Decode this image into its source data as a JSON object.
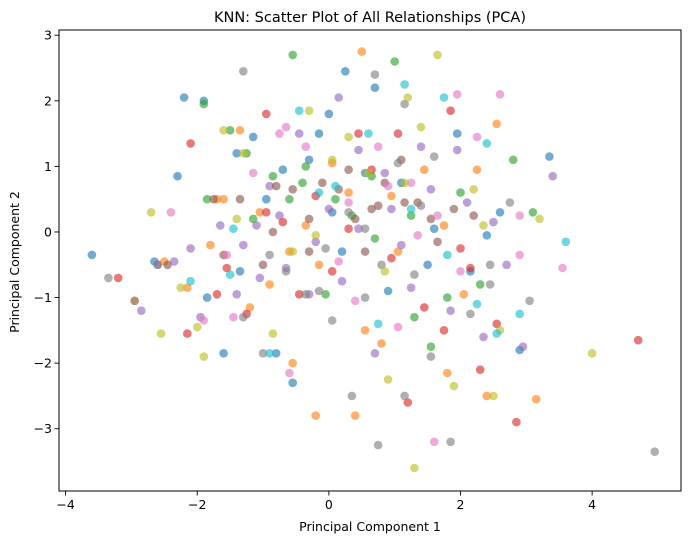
{
  "chart_data": {
    "type": "scatter",
    "title": "KNN: Scatter Plot of All Relationships (PCA)",
    "xlabel": "Principal Component 1",
    "ylabel": "Principal Component 2",
    "xlim": [
      -4.1,
      5.35
    ],
    "ylim": [
      -3.95,
      3.08
    ],
    "xticks": [
      -4,
      -2,
      0,
      2,
      4
    ],
    "yticks": [
      -3,
      -2,
      -1,
      0,
      1,
      2,
      3
    ],
    "grid": false,
    "legend": "none",
    "colors": [
      "#1f77b4",
      "#ff7f0e",
      "#2ca02c",
      "#d62728",
      "#9467bd",
      "#8c564b",
      "#e377c2",
      "#7f7f7f",
      "#bcbd22",
      "#17becf"
    ],
    "series": [
      {
        "color": "#1f77b4",
        "points": [
          [
            -3.6,
            -0.35
          ],
          [
            -2.2,
            2.05
          ],
          [
            -1.9,
            2.0
          ],
          [
            -2.3,
            0.85
          ],
          [
            -1.85,
            -1.0
          ],
          [
            -1.4,
            1.2
          ],
          [
            -1.15,
            1.45
          ],
          [
            -1.35,
            -0.6
          ],
          [
            -0.8,
            -1.85
          ],
          [
            -0.55,
            -2.3
          ],
          [
            -0.3,
            1.1
          ],
          [
            0.0,
            1.8
          ],
          [
            0.25,
            2.45
          ],
          [
            0.55,
            0.9
          ],
          [
            0.9,
            -0.9
          ],
          [
            1.5,
            -0.5
          ],
          [
            1.6,
            0.05
          ],
          [
            2.15,
            -0.6
          ],
          [
            2.4,
            -0.05
          ],
          [
            2.9,
            -1.8
          ],
          [
            3.35,
            1.15
          ],
          [
            -0.7,
            0.95
          ],
          [
            0.7,
            2.2
          ],
          [
            -1.6,
            -1.85
          ],
          [
            -2.65,
            -0.45
          ],
          [
            0.05,
            0.3
          ],
          [
            1.1,
            0.75
          ],
          [
            2.6,
            0.3
          ],
          [
            -0.95,
            0.5
          ],
          [
            0.2,
            -0.3
          ],
          [
            1.95,
            1.5
          ],
          [
            -0.15,
            1.5
          ]
        ]
      },
      {
        "color": "#ff7f0e",
        "points": [
          [
            -2.5,
            -0.45
          ],
          [
            -2.15,
            -0.85
          ],
          [
            -1.8,
            -0.2
          ],
          [
            -1.6,
            0.5
          ],
          [
            -1.35,
            1.55
          ],
          [
            -1.2,
            -1.15
          ],
          [
            -0.9,
            -0.8
          ],
          [
            -0.6,
            -0.3
          ],
          [
            -0.35,
            0.1
          ],
          [
            -0.15,
            -0.5
          ],
          [
            0.05,
            1.05
          ],
          [
            0.3,
            0.6
          ],
          [
            0.55,
            -1.5
          ],
          [
            0.8,
            -1.7
          ],
          [
            1.05,
            -0.3
          ],
          [
            1.45,
            0.95
          ],
          [
            1.75,
            0.1
          ],
          [
            2.05,
            -0.95
          ],
          [
            2.4,
            -2.5
          ],
          [
            2.55,
            1.65
          ],
          [
            3.15,
            -2.55
          ],
          [
            -0.55,
            -2.0
          ],
          [
            -0.2,
            -2.8
          ],
          [
            0.5,
            2.75
          ],
          [
            -1.05,
            0.3
          ],
          [
            0.95,
            0.55
          ],
          [
            1.8,
            -2.15
          ],
          [
            -2.95,
            -1.05
          ],
          [
            -1.7,
            0.5
          ],
          [
            0.4,
            -2.8
          ],
          [
            2.25,
            0.95
          ]
        ]
      },
      {
        "color": "#2ca02c",
        "points": [
          [
            -1.85,
            0.5
          ],
          [
            -1.5,
            1.55
          ],
          [
            -1.25,
            1.2
          ],
          [
            -0.85,
            0.85
          ],
          [
            -0.55,
            2.7
          ],
          [
            -0.35,
            1.0
          ],
          [
            -0.05,
            -0.95
          ],
          [
            0.1,
            0.5
          ],
          [
            0.35,
            0.25
          ],
          [
            0.7,
            -0.1
          ],
          [
            1.0,
            2.6
          ],
          [
            1.3,
            -1.3
          ],
          [
            1.55,
            -1.75
          ],
          [
            1.8,
            -1.0
          ],
          [
            2.0,
            0.6
          ],
          [
            2.3,
            -0.8
          ],
          [
            2.8,
            1.1
          ],
          [
            3.1,
            0.3
          ],
          [
            -1.9,
            1.95
          ],
          [
            -0.4,
            0.75
          ],
          [
            0.65,
            0.85
          ],
          [
            1.25,
            0.25
          ],
          [
            -0.6,
            0.5
          ],
          [
            -1.15,
            0.2
          ]
        ]
      },
      {
        "color": "#d62728",
        "points": [
          [
            -3.2,
            -0.7
          ],
          [
            -2.15,
            -1.55
          ],
          [
            -1.55,
            -0.55
          ],
          [
            -1.25,
            -1.25
          ],
          [
            -0.95,
            1.8
          ],
          [
            -0.7,
            0.15
          ],
          [
            -0.45,
            -0.95
          ],
          [
            -0.2,
            0.55
          ],
          [
            0.05,
            -0.6
          ],
          [
            0.45,
            1.5
          ],
          [
            0.65,
            0.95
          ],
          [
            0.95,
            -0.4
          ],
          [
            1.2,
            -2.6
          ],
          [
            1.45,
            -1.15
          ],
          [
            1.75,
            -1.5
          ],
          [
            2.0,
            -0.25
          ],
          [
            2.3,
            -2.1
          ],
          [
            2.55,
            -1.4
          ],
          [
            2.85,
            -2.9
          ],
          [
            4.7,
            -1.65
          ],
          [
            -2.1,
            1.35
          ],
          [
            1.05,
            1.5
          ],
          [
            0.3,
            0.05
          ],
          [
            -1.7,
            -0.95
          ],
          [
            1.85,
            1.85
          ],
          [
            -0.95,
            0.3
          ],
          [
            2.15,
            -0.55
          ]
        ]
      },
      {
        "color": "#9467bd",
        "points": [
          [
            -2.6,
            -0.5
          ],
          [
            -2.1,
            -0.25
          ],
          [
            -1.95,
            -1.3
          ],
          [
            -1.65,
            0.1
          ],
          [
            -1.3,
            -0.2
          ],
          [
            -1.05,
            -0.7
          ],
          [
            -0.75,
            0.25
          ],
          [
            -0.45,
            1.5
          ],
          [
            -0.2,
            -0.15
          ],
          [
            0.0,
            0.35
          ],
          [
            0.2,
            -0.75
          ],
          [
            0.45,
            1.25
          ],
          [
            0.7,
            -1.85
          ],
          [
            0.95,
            0.35
          ],
          [
            1.25,
            -0.85
          ],
          [
            1.55,
            0.65
          ],
          [
            1.85,
            -1.2
          ],
          [
            2.1,
            0.45
          ],
          [
            2.35,
            -1.6
          ],
          [
            2.7,
            -0.5
          ],
          [
            2.95,
            -1.75
          ],
          [
            3.4,
            0.85
          ],
          [
            -2.85,
            -1.2
          ],
          [
            -1.4,
            -0.95
          ],
          [
            0.45,
            0.05
          ],
          [
            1.4,
            1.3
          ],
          [
            -0.9,
            0.7
          ],
          [
            0.85,
            0.9
          ],
          [
            -0.3,
            -0.95
          ],
          [
            2.5,
            0.15
          ],
          [
            -1.1,
            0.1
          ],
          [
            0.15,
            2.05
          ],
          [
            1.1,
            -0.2
          ],
          [
            -2.35,
            -0.45
          ],
          [
            -0.65,
            -0.55
          ],
          [
            1.95,
            1.25
          ]
        ]
      },
      {
        "color": "#8c564b",
        "points": [
          [
            -2.45,
            -0.5
          ],
          [
            -1.75,
            0.5
          ],
          [
            -1.35,
            0.5
          ],
          [
            -1.0,
            -0.5
          ],
          [
            -0.8,
            0.7
          ],
          [
            -0.55,
            0.65
          ],
          [
            -0.3,
            -0.3
          ],
          [
            -0.1,
            0.75
          ],
          [
            0.15,
            0.65
          ],
          [
            0.4,
            0.2
          ],
          [
            0.65,
            0.35
          ],
          [
            0.85,
            0.75
          ],
          [
            1.1,
            1.1
          ],
          [
            1.35,
            0.45
          ],
          [
            1.65,
            -0.15
          ],
          [
            1.9,
            0.35
          ],
          [
            2.2,
            0.25
          ],
          [
            -0.3,
            0.2
          ],
          [
            0.3,
            0.95
          ],
          [
            0.75,
            0.4
          ],
          [
            1.55,
            0.2
          ],
          [
            -1.6,
            -0.35
          ],
          [
            0.55,
            -0.3
          ],
          [
            1.15,
            0.45
          ],
          [
            -0.85,
            0.0
          ]
        ]
      },
      {
        "color": "#e377c2",
        "points": [
          [
            -2.4,
            0.3
          ],
          [
            -1.9,
            -1.35
          ],
          [
            -1.55,
            -0.35
          ],
          [
            -1.15,
            0.9
          ],
          [
            -0.6,
            -2.15
          ],
          [
            -0.35,
            1.3
          ],
          [
            0.15,
            -0.45
          ],
          [
            0.4,
            -1.05
          ],
          [
            0.75,
            1.3
          ],
          [
            1.05,
            -1.45
          ],
          [
            1.35,
            -0.05
          ],
          [
            1.65,
            0.25
          ],
          [
            1.95,
            2.1
          ],
          [
            2.25,
            1.45
          ],
          [
            2.6,
            2.1
          ],
          [
            2.9,
            0.25
          ],
          [
            3.55,
            -0.55
          ],
          [
            1.6,
            -3.2
          ],
          [
            -0.65,
            1.6
          ],
          [
            2.0,
            -0.6
          ],
          [
            0.3,
            0.45
          ],
          [
            -1.45,
            -1.3
          ],
          [
            0.9,
            0.7
          ],
          [
            2.9,
            -0.35
          ],
          [
            -0.75,
            1.5
          ],
          [
            1.25,
            0.75
          ]
        ]
      },
      {
        "color": "#7f7f7f",
        "points": [
          [
            -3.35,
            -0.7
          ],
          [
            -2.95,
            -1.05
          ],
          [
            -2.6,
            -0.5
          ],
          [
            -1.3,
            -1.3
          ],
          [
            -1.0,
            -1.85
          ],
          [
            -0.65,
            -0.6
          ],
          [
            -0.35,
            -0.95
          ],
          [
            -0.05,
            -0.25
          ],
          [
            0.3,
            0.3
          ],
          [
            0.55,
            0.05
          ],
          [
            0.8,
            -0.5
          ],
          [
            1.05,
            1.05
          ],
          [
            1.3,
            -0.65
          ],
          [
            1.55,
            -1.9
          ],
          [
            1.85,
            -3.2
          ],
          [
            2.15,
            -1.25
          ],
          [
            2.45,
            -0.5
          ],
          [
            2.75,
            0.45
          ],
          [
            3.05,
            -1.05
          ],
          [
            4.95,
            -3.35
          ],
          [
            -1.3,
            2.45
          ],
          [
            0.7,
            2.4
          ],
          [
            1.4,
            0.4
          ],
          [
            1.15,
            -2.5
          ],
          [
            0.55,
            -1.0
          ],
          [
            -0.15,
            -0.9
          ],
          [
            0.35,
            -2.5
          ],
          [
            1.6,
            1.15
          ],
          [
            -0.9,
            -0.35
          ],
          [
            0.05,
            -1.35
          ],
          [
            1.15,
            1.95
          ],
          [
            0.75,
            -3.25
          ],
          [
            2.45,
            -0.8
          ]
        ]
      },
      {
        "color": "#bcbd22",
        "points": [
          [
            -2.7,
            0.3
          ],
          [
            -2.55,
            -1.55
          ],
          [
            -2.25,
            -0.85
          ],
          [
            -1.9,
            -1.9
          ],
          [
            -1.6,
            1.55
          ],
          [
            -1.3,
            1.2
          ],
          [
            -0.85,
            -1.55
          ],
          [
            -0.55,
            -0.3
          ],
          [
            -0.2,
            -0.05
          ],
          [
            0.05,
            1.1
          ],
          [
            0.3,
            1.45
          ],
          [
            0.6,
            0.9
          ],
          [
            0.9,
            -2.25
          ],
          [
            1.15,
            0.75
          ],
          [
            1.4,
            1.6
          ],
          [
            1.65,
            2.7
          ],
          [
            1.9,
            -2.35
          ],
          [
            2.2,
            0.65
          ],
          [
            2.5,
            -2.5
          ],
          [
            3.2,
            0.2
          ],
          [
            4.0,
            -1.85
          ],
          [
            -0.3,
            1.85
          ],
          [
            0.85,
            -0.6
          ],
          [
            1.2,
            2.05
          ],
          [
            -1.4,
            0.2
          ],
          [
            2.35,
            0.1
          ],
          [
            1.3,
            -3.6
          ],
          [
            2.6,
            -1.5
          ],
          [
            -2.0,
            -1.45
          ]
        ]
      },
      {
        "color": "#17becf",
        "points": [
          [
            -2.1,
            -0.75
          ],
          [
            -1.5,
            -0.65
          ],
          [
            -0.9,
            -1.85
          ],
          [
            -0.45,
            1.85
          ],
          [
            0.1,
            0.7
          ],
          [
            0.75,
            -1.4
          ],
          [
            1.15,
            2.25
          ],
          [
            1.75,
            2.05
          ],
          [
            2.4,
            1.35
          ],
          [
            2.9,
            -1.25
          ],
          [
            3.6,
            -0.15
          ],
          [
            0.6,
            1.5
          ],
          [
            -0.15,
            0.6
          ],
          [
            1.25,
            0.35
          ],
          [
            2.25,
            -1.1
          ],
          [
            2.55,
            -1.55
          ],
          [
            -1.45,
            0.05
          ],
          [
            1.8,
            -0.35
          ]
        ]
      }
    ]
  }
}
